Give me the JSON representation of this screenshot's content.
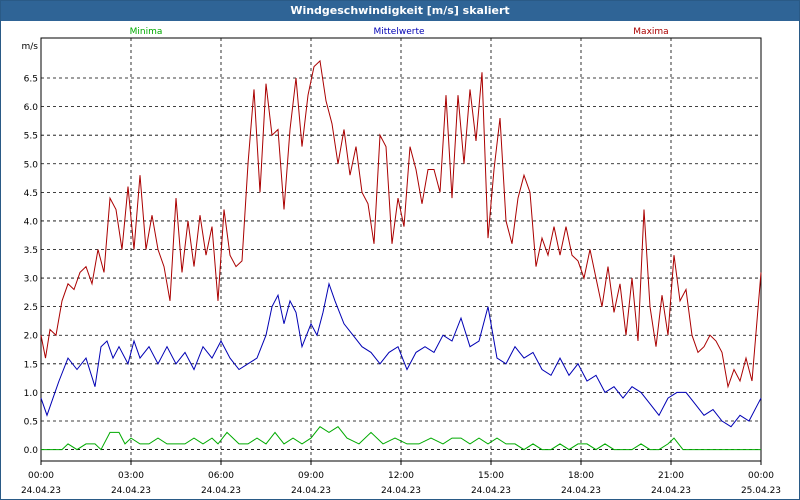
{
  "title": "Windgeschwindigkeit [m/s] skaliert",
  "colors": {
    "minima": "#00aa00",
    "mittel": "#0000b4",
    "maxima": "#aa0000",
    "titlebar": "#2f6496"
  },
  "chart_data": {
    "type": "line",
    "title": "Windgeschwindigkeit [m/s] skaliert",
    "ylabel": "m/s",
    "ylim": [
      -0.2,
      7.2
    ],
    "xlim": [
      0,
      24
    ],
    "grid": true,
    "legend_placement": "top",
    "yticks": [
      "0.0",
      "0.5",
      "1.0",
      "1.5",
      "2.0",
      "2.5",
      "3.0",
      "3.5",
      "4.0",
      "4.5",
      "5.0",
      "5.5",
      "6.0",
      "6.5"
    ],
    "ytick_values": [
      0,
      0.5,
      1,
      1.5,
      2,
      2.5,
      3,
      3.5,
      4,
      4.5,
      5,
      5.5,
      6,
      6.5
    ],
    "xticks": [
      {
        "h": 0,
        "time": "00:00",
        "date": "24.04.23"
      },
      {
        "h": 3,
        "time": "03:00",
        "date": "24.04.23"
      },
      {
        "h": 6,
        "time": "06:00",
        "date": "24.04.23"
      },
      {
        "h": 9,
        "time": "09:00",
        "date": "24.04.23"
      },
      {
        "h": 12,
        "time": "12:00",
        "date": "24.04.23"
      },
      {
        "h": 15,
        "time": "15:00",
        "date": "24.04.23"
      },
      {
        "h": 18,
        "time": "18:00",
        "date": "24.04.23"
      },
      {
        "h": 21,
        "time": "21:00",
        "date": "24.04.23"
      },
      {
        "h": 24,
        "time": "00:00",
        "date": "25.04.23"
      }
    ],
    "series": [
      {
        "name": "Minima",
        "color": "#00aa00",
        "key": "minima",
        "x": [
          0,
          0.7,
          0.9,
          1.2,
          1.5,
          1.8,
          2.0,
          2.3,
          2.6,
          2.8,
          3.0,
          3.3,
          3.6,
          3.9,
          4.2,
          4.5,
          4.8,
          5.1,
          5.4,
          5.7,
          5.9,
          6.2,
          6.6,
          6.9,
          7.2,
          7.5,
          7.8,
          8.1,
          8.4,
          8.7,
          9.0,
          9.3,
          9.6,
          9.9,
          10.2,
          10.6,
          11.0,
          11.4,
          11.8,
          12.2,
          12.6,
          13.0,
          13.4,
          13.7,
          14.0,
          14.3,
          14.6,
          14.9,
          15.2,
          15.5,
          15.8,
          16.1,
          16.4,
          16.7,
          17.0,
          17.3,
          17.6,
          17.9,
          18.2,
          18.5,
          18.8,
          19.1,
          19.4,
          19.7,
          20.0,
          20.3,
          20.6,
          20.9,
          21.1,
          21.4,
          24.0
        ],
        "values": [
          0.0,
          0.0,
          0.1,
          0.0,
          0.1,
          0.1,
          0.0,
          0.3,
          0.3,
          0.1,
          0.2,
          0.1,
          0.1,
          0.2,
          0.1,
          0.1,
          0.1,
          0.2,
          0.1,
          0.2,
          0.1,
          0.3,
          0.1,
          0.1,
          0.2,
          0.1,
          0.3,
          0.1,
          0.2,
          0.1,
          0.2,
          0.4,
          0.3,
          0.4,
          0.2,
          0.1,
          0.3,
          0.1,
          0.2,
          0.1,
          0.1,
          0.2,
          0.1,
          0.2,
          0.2,
          0.1,
          0.2,
          0.1,
          0.2,
          0.1,
          0.1,
          0.0,
          0.1,
          0.0,
          0.0,
          0.1,
          0.0,
          0.1,
          0.1,
          0.0,
          0.1,
          0.0,
          0.0,
          0.0,
          0.1,
          0.0,
          0.0,
          0.1,
          0.2,
          0.0,
          0.0
        ]
      },
      {
        "name": "Mittelwerte",
        "color": "#0000b4",
        "key": "mittel",
        "x": [
          0,
          0.2,
          0.4,
          0.6,
          0.9,
          1.2,
          1.5,
          1.8,
          2.0,
          2.2,
          2.4,
          2.6,
          2.9,
          3.1,
          3.3,
          3.6,
          3.9,
          4.2,
          4.5,
          4.8,
          5.1,
          5.4,
          5.7,
          6.0,
          6.3,
          6.6,
          6.9,
          7.2,
          7.5,
          7.7,
          7.9,
          8.1,
          8.3,
          8.5,
          8.7,
          9.0,
          9.2,
          9.4,
          9.6,
          9.8,
          10.1,
          10.4,
          10.7,
          11.0,
          11.3,
          11.6,
          11.9,
          12.2,
          12.5,
          12.8,
          13.1,
          13.4,
          13.7,
          14.0,
          14.3,
          14.6,
          14.9,
          15.2,
          15.5,
          15.8,
          16.1,
          16.4,
          16.7,
          17.0,
          17.3,
          17.6,
          17.9,
          18.2,
          18.5,
          18.8,
          19.1,
          19.4,
          19.7,
          20.0,
          20.3,
          20.6,
          20.9,
          21.2,
          21.5,
          21.8,
          22.1,
          22.4,
          22.7,
          23.0,
          23.3,
          23.6,
          23.9,
          24.0
        ],
        "values": [
          0.9,
          0.6,
          0.9,
          1.2,
          1.6,
          1.4,
          1.6,
          1.1,
          1.8,
          1.9,
          1.6,
          1.8,
          1.5,
          1.9,
          1.6,
          1.8,
          1.5,
          1.8,
          1.5,
          1.7,
          1.4,
          1.8,
          1.6,
          1.9,
          1.6,
          1.4,
          1.5,
          1.6,
          2.0,
          2.5,
          2.7,
          2.2,
          2.6,
          2.4,
          1.8,
          2.2,
          2.0,
          2.4,
          2.9,
          2.6,
          2.2,
          2.0,
          1.8,
          1.7,
          1.5,
          1.7,
          1.8,
          1.4,
          1.7,
          1.8,
          1.7,
          2.0,
          1.9,
          2.3,
          1.8,
          1.9,
          2.5,
          1.6,
          1.5,
          1.8,
          1.6,
          1.7,
          1.4,
          1.3,
          1.6,
          1.3,
          1.5,
          1.2,
          1.3,
          1.0,
          1.1,
          0.9,
          1.1,
          1.0,
          0.8,
          0.6,
          0.9,
          1.0,
          1.0,
          0.8,
          0.6,
          0.7,
          0.5,
          0.4,
          0.6,
          0.5,
          0.8,
          0.9
        ]
      },
      {
        "name": "Maxima",
        "color": "#aa0000",
        "key": "maxima",
        "x": [
          0,
          0.15,
          0.3,
          0.5,
          0.7,
          0.9,
          1.1,
          1.3,
          1.5,
          1.7,
          1.9,
          2.1,
          2.3,
          2.5,
          2.7,
          2.9,
          3.1,
          3.3,
          3.5,
          3.7,
          3.9,
          4.1,
          4.3,
          4.5,
          4.7,
          4.9,
          5.1,
          5.3,
          5.5,
          5.7,
          5.9,
          6.1,
          6.3,
          6.5,
          6.7,
          6.9,
          7.1,
          7.3,
          7.5,
          7.7,
          7.9,
          8.1,
          8.3,
          8.5,
          8.7,
          8.9,
          9.1,
          9.3,
          9.5,
          9.7,
          9.9,
          10.1,
          10.3,
          10.5,
          10.7,
          10.9,
          11.1,
          11.3,
          11.5,
          11.7,
          11.9,
          12.1,
          12.3,
          12.5,
          12.7,
          12.9,
          13.1,
          13.3,
          13.5,
          13.7,
          13.9,
          14.1,
          14.3,
          14.5,
          14.7,
          14.9,
          15.1,
          15.3,
          15.5,
          15.7,
          15.9,
          16.1,
          16.3,
          16.5,
          16.7,
          16.9,
          17.1,
          17.3,
          17.5,
          17.7,
          17.9,
          18.1,
          18.3,
          18.5,
          18.7,
          18.9,
          19.1,
          19.3,
          19.5,
          19.7,
          19.9,
          20.1,
          20.3,
          20.5,
          20.7,
          20.9,
          21.1,
          21.3,
          21.5,
          21.7,
          21.9,
          22.1,
          22.3,
          22.5,
          22.7,
          22.9,
          23.1,
          23.3,
          23.5,
          23.7,
          24.0
        ],
        "values": [
          2.0,
          1.6,
          2.1,
          2.0,
          2.6,
          2.9,
          2.8,
          3.1,
          3.2,
          2.9,
          3.5,
          3.1,
          4.4,
          4.2,
          3.5,
          4.6,
          3.5,
          4.8,
          3.5,
          4.1,
          3.5,
          3.2,
          2.6,
          4.4,
          3.1,
          4.0,
          3.2,
          4.1,
          3.4,
          3.9,
          2.6,
          4.2,
          3.4,
          3.2,
          3.3,
          5.0,
          6.3,
          4.5,
          6.4,
          5.5,
          5.6,
          4.2,
          5.6,
          6.5,
          5.3,
          6.2,
          6.7,
          6.8,
          6.1,
          5.7,
          5.0,
          5.6,
          4.8,
          5.3,
          4.5,
          4.3,
          3.6,
          5.5,
          5.3,
          3.6,
          4.4,
          3.9,
          5.3,
          4.9,
          4.3,
          4.9,
          4.9,
          4.5,
          6.2,
          4.4,
          6.2,
          5.0,
          6.3,
          5.4,
          6.6,
          3.7,
          4.9,
          5.8,
          4.0,
          3.6,
          4.4,
          4.8,
          4.5,
          3.2,
          3.7,
          3.4,
          3.9,
          3.4,
          3.9,
          3.4,
          3.3,
          3.0,
          3.5,
          3.0,
          2.5,
          3.2,
          2.4,
          2.9,
          2.0,
          3.0,
          1.9,
          4.2,
          2.5,
          1.8,
          2.7,
          2.0,
          3.4,
          2.6,
          2.8,
          2.0,
          1.7,
          1.8,
          2.0,
          1.9,
          1.7,
          1.1,
          1.4,
          1.2,
          1.6,
          1.2,
          3.1
        ]
      }
    ]
  }
}
